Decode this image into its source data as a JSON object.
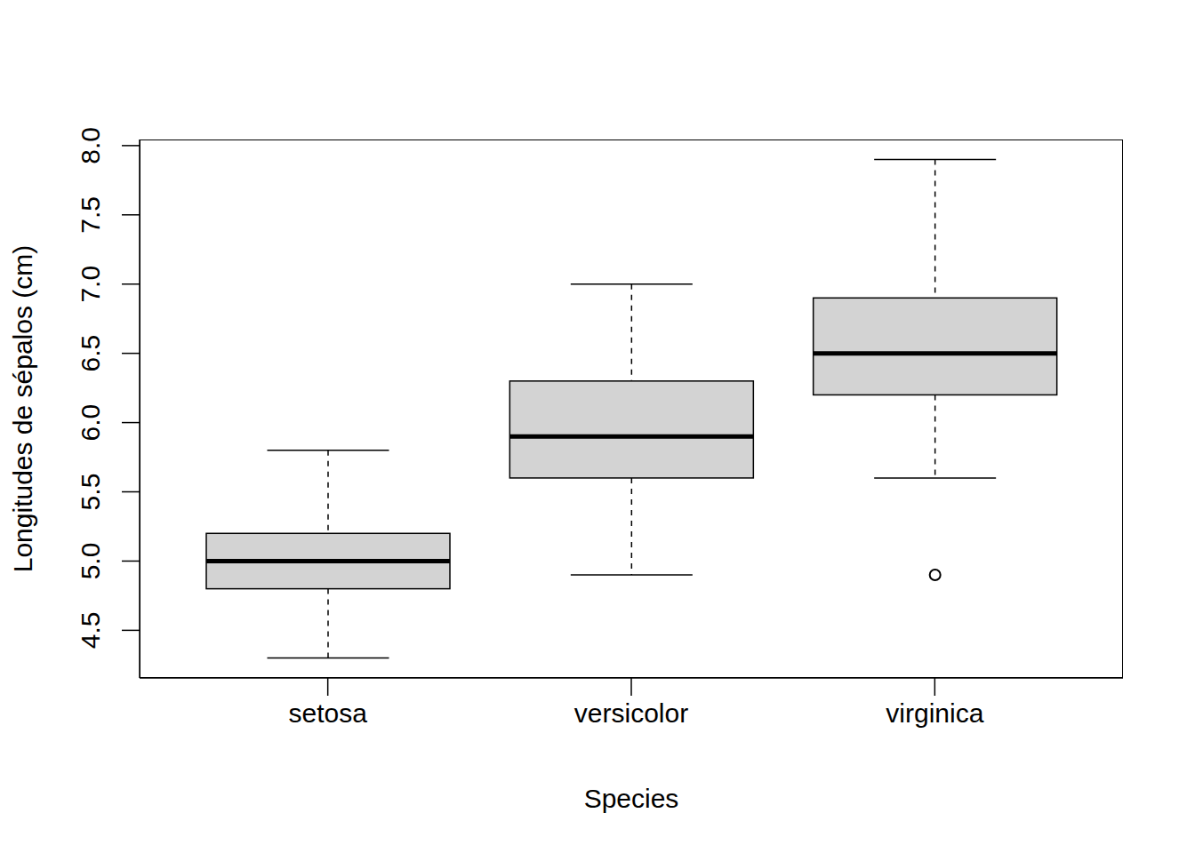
{
  "chart_data": {
    "type": "box",
    "xlabel": "Species",
    "ylabel": "Longitudes de sépalos (cm)",
    "categories": [
      "setosa",
      "versicolor",
      "virginica"
    ],
    "whisker_low": [
      4.3,
      4.9,
      5.6
    ],
    "q1": [
      4.8,
      5.6,
      6.2
    ],
    "median": [
      5.0,
      5.9,
      6.5
    ],
    "q3": [
      5.2,
      6.3,
      6.9
    ],
    "whisker_high": [
      5.8,
      7.0,
      7.9
    ],
    "outliers": [
      [],
      [],
      [
        4.9
      ]
    ],
    "color": "#d3d3d3",
    "ylim": [
      4.156,
      8.044
    ],
    "yticks": [
      4.5,
      {
        "value": 5,
        "label": "5.0"
      },
      5.5,
      {
        "value": 6,
        "label": "6.0"
      },
      6.5,
      {
        "value": 7,
        "label": "7.0"
      },
      7.5,
      {
        "value": 8,
        "label": "8.0"
      }
    ],
    "grid": false
  }
}
